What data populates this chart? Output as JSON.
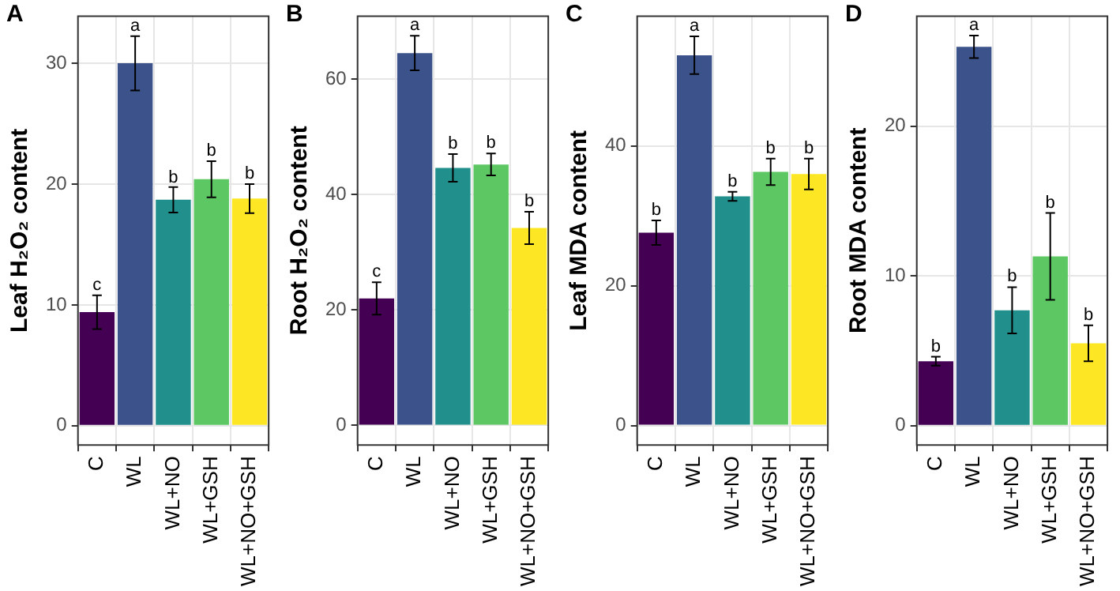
{
  "chart_data": [
    {
      "type": "bar",
      "title": "A",
      "ylabel": "Leaf H₂O₂ content",
      "categories": [
        "C",
        "WL",
        "WL+NO",
        "WL+GSH",
        "WL+NO+GSH"
      ],
      "values": [
        9.4,
        30.0,
        18.7,
        20.4,
        18.8
      ],
      "errors": [
        1.4,
        2.25,
        1.05,
        1.5,
        1.2
      ],
      "colors": [
        "#440154",
        "#3b528b",
        "#21908c",
        "#5dc863",
        "#fde725"
      ],
      "ylim": [
        -1.6,
        33.9
      ],
      "yticks": [
        0,
        10,
        20,
        30
      ],
      "grid": true,
      "annotations": [
        {
          "text": "c",
          "x": "C",
          "y": 10.75
        },
        {
          "text": "a",
          "x": "WL",
          "y": 32.25
        },
        {
          "text": "b",
          "x": "WL+NO",
          "y": 19.7
        },
        {
          "text": "b",
          "x": "WL+GSH",
          "y": 21.9
        },
        {
          "text": "b",
          "x": "WL+NO+GSH",
          "y": 20.0
        }
      ]
    },
    {
      "type": "bar",
      "title": "B",
      "ylabel": "Root H₂O₂ content",
      "categories": [
        "C",
        "WL",
        "WL+NO",
        "WL+GSH",
        "WL+NO+GSH"
      ],
      "values": [
        22.0,
        64.5,
        44.6,
        45.2,
        34.2
      ],
      "errors": [
        2.8,
        3.0,
        2.4,
        1.9,
        2.8
      ],
      "colors": [
        "#440154",
        "#3b528b",
        "#21908c",
        "#5dc863",
        "#fde725"
      ],
      "ylim": [
        -3.4,
        70.9
      ],
      "yticks": [
        0,
        20,
        40,
        60
      ],
      "grid": true,
      "annotations": [
        {
          "text": "c",
          "x": "C",
          "y": 24.8
        },
        {
          "text": "a",
          "x": "WL",
          "y": 67.5
        },
        {
          "text": "b",
          "x": "WL+NO",
          "y": 47.0
        },
        {
          "text": "b",
          "x": "WL+GSH",
          "y": 47.1
        },
        {
          "text": "b",
          "x": "WL+NO+GSH",
          "y": 37.0
        }
      ]
    },
    {
      "type": "bar",
      "title": "C",
      "ylabel": "Leaf MDA content",
      "categories": [
        "C",
        "WL",
        "WL+NO",
        "WL+GSH",
        "WL+NO+GSH"
      ],
      "values": [
        27.6,
        53.0,
        32.8,
        36.3,
        36.0
      ],
      "errors": [
        1.75,
        2.7,
        0.65,
        1.9,
        2.2
      ],
      "colors": [
        "#440154",
        "#3b528b",
        "#21908c",
        "#5dc863",
        "#fde725"
      ],
      "ylim": [
        -2.8,
        58.6
      ],
      "yticks": [
        0,
        20,
        40
      ],
      "grid": true,
      "annotations": [
        {
          "text": "b",
          "x": "C",
          "y": 29.35
        },
        {
          "text": "a",
          "x": "WL",
          "y": 55.7
        },
        {
          "text": "b",
          "x": "WL+NO",
          "y": 33.45
        },
        {
          "text": "b",
          "x": "WL+GSH",
          "y": 38.2
        },
        {
          "text": "b",
          "x": "WL+NO+GSH",
          "y": 38.2
        }
      ]
    },
    {
      "type": "bar",
      "title": "D",
      "ylabel": "Root MDA content",
      "categories": [
        "C",
        "WL",
        "WL+NO",
        "WL+GSH",
        "WL+NO+GSH"
      ],
      "values": [
        4.3,
        25.3,
        7.7,
        11.3,
        5.5
      ],
      "errors": [
        0.3,
        0.75,
        1.55,
        2.9,
        1.2
      ],
      "colors": [
        "#440154",
        "#3b528b",
        "#21908c",
        "#5dc863",
        "#fde725"
      ],
      "ylim": [
        -1.3,
        27.35
      ],
      "yticks": [
        0,
        10,
        20
      ],
      "grid": true,
      "annotations": [
        {
          "text": "b",
          "x": "C",
          "y": 4.6
        },
        {
          "text": "a",
          "x": "WL",
          "y": 26.05
        },
        {
          "text": "b",
          "x": "WL+NO",
          "y": 9.25
        },
        {
          "text": "b",
          "x": "WL+GSH",
          "y": 14.2
        },
        {
          "text": "b",
          "x": "WL+NO+GSH",
          "y": 6.7
        }
      ]
    }
  ]
}
